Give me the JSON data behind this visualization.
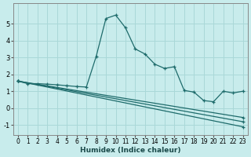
{
  "title": "",
  "xlabel": "Humidex (Indice chaleur)",
  "ylabel": "",
  "bg_color": "#c8ecec",
  "grid_color": "#aad8d8",
  "line_color": "#1e6b6b",
  "xlim": [
    -0.5,
    23.5
  ],
  "ylim": [
    -1.6,
    6.2
  ],
  "yticks": [
    -1,
    0,
    1,
    2,
    3,
    4,
    5
  ],
  "xticks": [
    0,
    1,
    2,
    3,
    4,
    5,
    6,
    7,
    8,
    9,
    10,
    11,
    12,
    13,
    14,
    15,
    16,
    17,
    18,
    19,
    20,
    21,
    22,
    23
  ],
  "curves": [
    {
      "x": [
        0,
        1,
        2,
        3,
        4,
        5,
        6,
        7,
        8,
        9,
        10,
        11,
        12,
        13,
        14,
        15,
        16,
        17,
        18,
        19,
        20,
        21,
        22,
        23
      ],
      "y": [
        1.6,
        1.45,
        1.45,
        1.42,
        1.38,
        1.33,
        1.28,
        1.25,
        3.05,
        5.3,
        5.5,
        4.75,
        3.5,
        3.2,
        2.6,
        2.35,
        2.45,
        1.05,
        0.95,
        0.45,
        0.38,
        1.0,
        0.9,
        1.0
      ]
    },
    {
      "x": [
        0,
        23
      ],
      "y": [
        1.6,
        -1.1
      ]
    },
    {
      "x": [
        0,
        23
      ],
      "y": [
        1.6,
        -0.8
      ]
    },
    {
      "x": [
        0,
        23
      ],
      "y": [
        1.6,
        -0.55
      ]
    }
  ]
}
